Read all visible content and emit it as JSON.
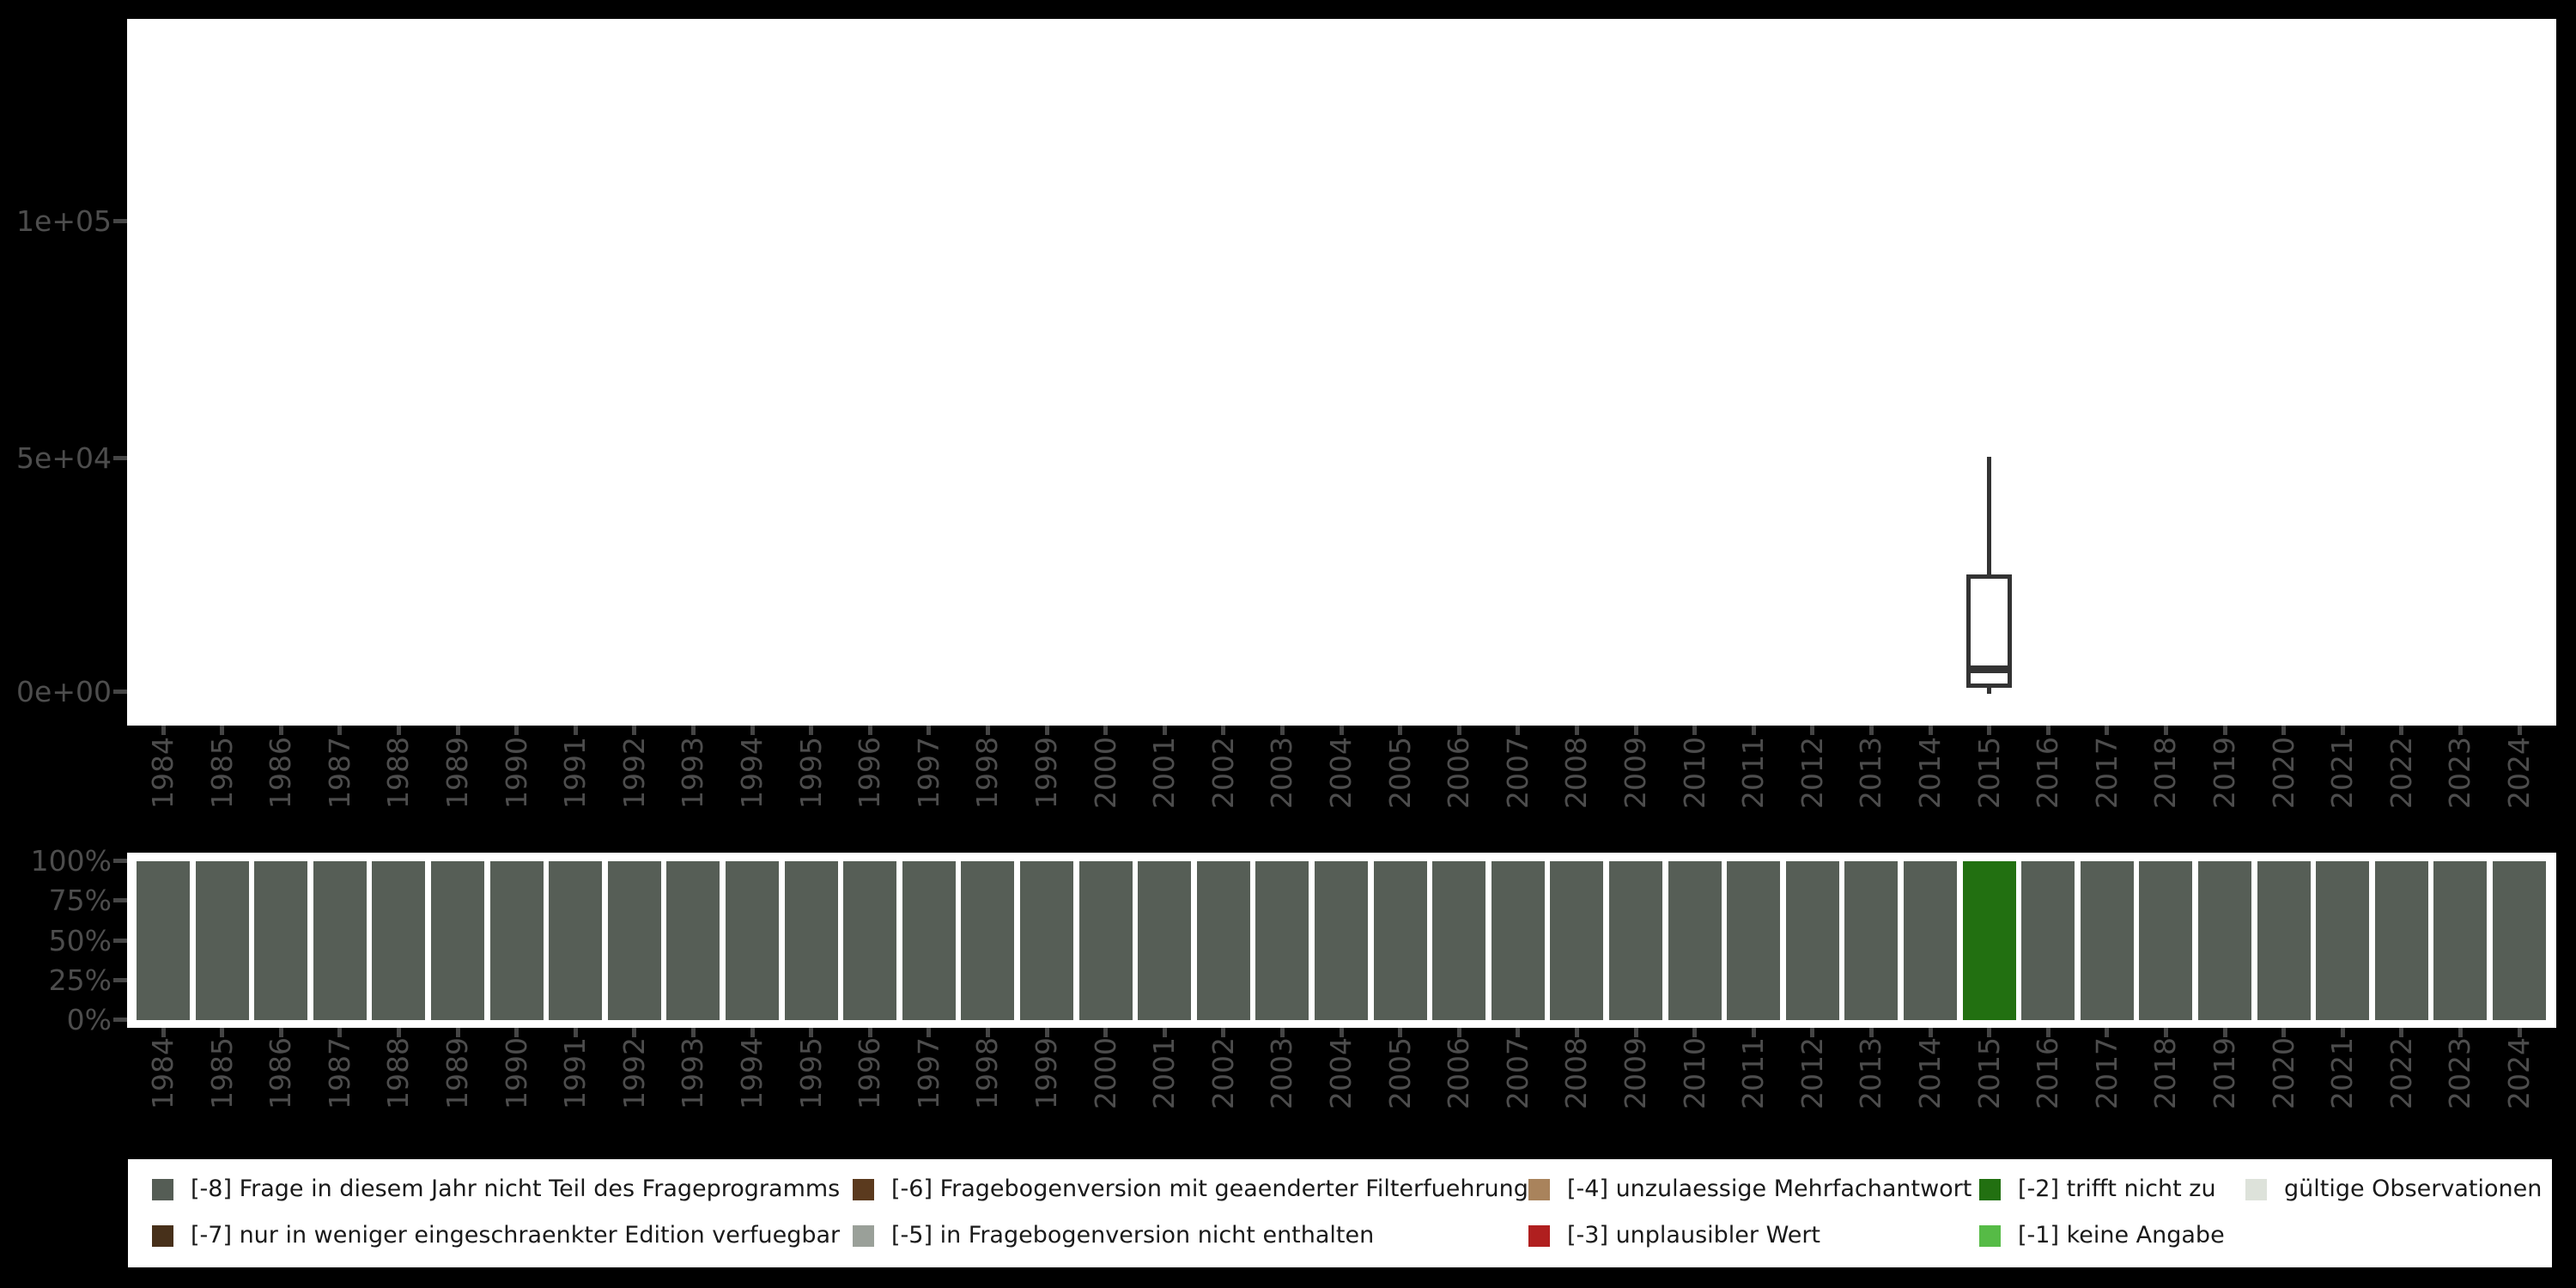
{
  "colors": {
    "background": "#000000",
    "panel": "#ffffff",
    "axis_text": "#4d4d4d",
    "tick_mark": "#454545",
    "boxplot_line": "#333333",
    "bar_default": "#565e56",
    "bar_highlight": "#227011",
    "legend_text": "#1a1a1a"
  },
  "top_chart": {
    "y_tick_labels": [
      "1e+05",
      "5e+04",
      "0e+00"
    ]
  },
  "bottom_chart": {
    "y_tick_labels": [
      "100%",
      "75%",
      "50%",
      "25%",
      "0%"
    ]
  },
  "legend": {
    "rows": [
      [
        {
          "id": "minus8",
          "label": "[-8] Frage in diesem Jahr nicht Teil des Frageprogramms",
          "color": "#555d55"
        },
        {
          "id": "minus6",
          "label": "[-6] Fragebogenversion mit geaenderter Filterfuehrung",
          "color": "#5b3a1e"
        },
        {
          "id": "minus4",
          "label": "[-4] unzulaessige Mehrfachantwort",
          "color": "#a9835c"
        },
        {
          "id": "minus2",
          "label": "[-2] trifft nicht zu",
          "color": "#227011"
        },
        {
          "id": "valid",
          "label": "gültige Observationen",
          "color": "#dde2da"
        }
      ],
      [
        {
          "id": "minus7",
          "label": "[-7] nur in weniger eingeschraenkter Edition verfuegbar",
          "color": "#47301a"
        },
        {
          "id": "minus5",
          "label": "[-5] in Fragebogenversion nicht enthalten",
          "color": "#9aa099"
        },
        {
          "id": "minus3",
          "label": "[-3] unplausibler Wert",
          "color": "#b01f1f"
        },
        {
          "id": "minus1",
          "label": "[-1] keine Angabe",
          "color": "#56bb46"
        }
      ]
    ]
  },
  "chart_data": [
    {
      "type": "boxplot",
      "title": "",
      "x_categories": [
        "1984",
        "1985",
        "1986",
        "1987",
        "1988",
        "1989",
        "1990",
        "1991",
        "1992",
        "1993",
        "1994",
        "1995",
        "1996",
        "1997",
        "1998",
        "1999",
        "2000",
        "2001",
        "2002",
        "2003",
        "2004",
        "2005",
        "2006",
        "2007",
        "2008",
        "2009",
        "2010",
        "2011",
        "2012",
        "2013",
        "2014",
        "2015",
        "2016",
        "2017",
        "2018",
        "2019",
        "2020",
        "2021",
        "2022",
        "2023",
        "2024"
      ],
      "y_tick_labels": [
        "0e+00",
        "5e+04",
        "1e+05"
      ],
      "ylim": [
        -7000,
        142000
      ],
      "grid": "off",
      "legend_position": "none",
      "boxes": [
        {
          "x": "2015",
          "lower_whisker": 0,
          "q1": 1000,
          "median": 5000,
          "q3": 25000,
          "upper_whisker": 50000
        }
      ]
    },
    {
      "type": "bar",
      "subtype": "stacked-percent",
      "title": "",
      "categories": [
        "1984",
        "1985",
        "1986",
        "1987",
        "1988",
        "1989",
        "1990",
        "1991",
        "1992",
        "1993",
        "1994",
        "1995",
        "1996",
        "1997",
        "1998",
        "1999",
        "2000",
        "2001",
        "2002",
        "2003",
        "2004",
        "2005",
        "2006",
        "2007",
        "2008",
        "2009",
        "2010",
        "2011",
        "2012",
        "2013",
        "2014",
        "2015",
        "2016",
        "2017",
        "2018",
        "2019",
        "2020",
        "2021",
        "2022",
        "2023",
        "2024"
      ],
      "y_tick_labels": [
        "0%",
        "25%",
        "50%",
        "75%",
        "100%"
      ],
      "ylim": [
        0,
        100
      ],
      "grid": "off",
      "legend_position": "bottom",
      "series": [
        {
          "name": "[-8] Frage in diesem Jahr nicht Teil des Frageprogramms",
          "color": "#565e56",
          "values": [
            100,
            100,
            100,
            100,
            100,
            100,
            100,
            100,
            100,
            100,
            100,
            100,
            100,
            100,
            100,
            100,
            100,
            100,
            100,
            100,
            100,
            100,
            100,
            100,
            100,
            100,
            100,
            100,
            100,
            100,
            100,
            0,
            100,
            100,
            100,
            100,
            100,
            100,
            100,
            100,
            100
          ]
        },
        {
          "name": "[-2] trifft nicht zu",
          "color": "#227011",
          "values": [
            0,
            0,
            0,
            0,
            0,
            0,
            0,
            0,
            0,
            0,
            0,
            0,
            0,
            0,
            0,
            0,
            0,
            0,
            0,
            0,
            0,
            0,
            0,
            0,
            0,
            0,
            0,
            0,
            0,
            0,
            0,
            100,
            0,
            0,
            0,
            0,
            0,
            0,
            0,
            0,
            0
          ]
        }
      ]
    }
  ]
}
